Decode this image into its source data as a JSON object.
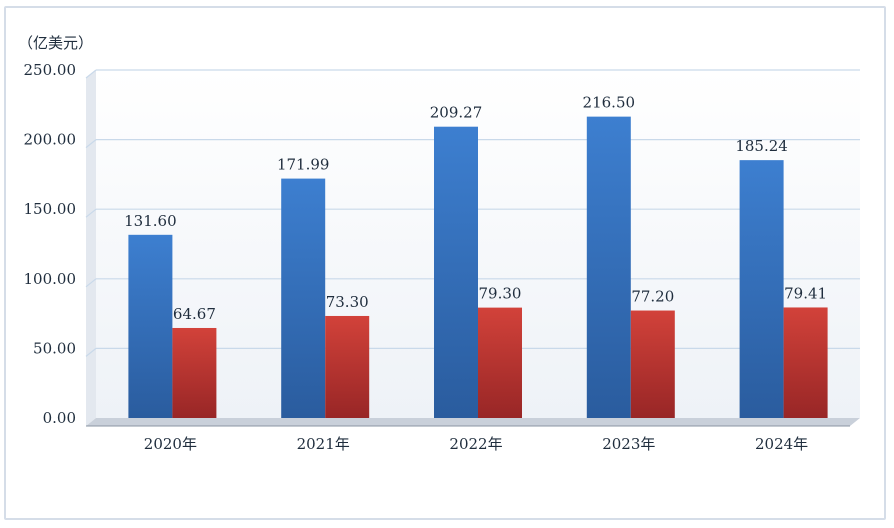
{
  "chart_data": {
    "type": "bar",
    "unit_label": "（亿美元）",
    "categories": [
      "2020年",
      "2021年",
      "2022年",
      "2023年",
      "2024年"
    ],
    "series": [
      {
        "values": [
          131.6,
          171.99,
          209.27,
          216.5,
          185.24
        ],
        "labels": [
          "131.60",
          "171.99",
          "209.27",
          "216.50",
          "185.24"
        ],
        "color": "#3a78c7"
      },
      {
        "values": [
          64.67,
          73.3,
          79.3,
          77.2,
          79.41
        ],
        "labels": [
          "64.67",
          "73.30",
          "79.30",
          "77.20",
          "79.41"
        ],
        "color": "#c83a33"
      }
    ],
    "yticks": [
      "0.00",
      "50.00",
      "100.00",
      "150.00",
      "200.00",
      "250.00"
    ],
    "ylim": [
      0,
      250
    ],
    "grid": true,
    "legend": "none"
  }
}
